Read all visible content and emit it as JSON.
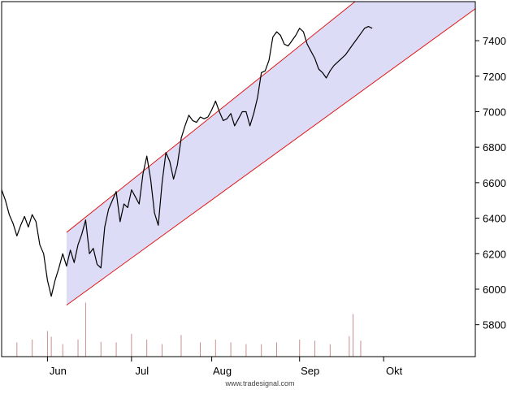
{
  "chart_data": {
    "type": "line",
    "title": "",
    "xlabel": "",
    "ylabel": "",
    "watermark": "www.tradesignal.com",
    "x_unit": "trading day index (0 = Jun 1)",
    "xlim": [
      -12,
      112
    ],
    "ylim": [
      5620,
      7620
    ],
    "y_ticks": [
      5800,
      6000,
      6200,
      6400,
      6600,
      6800,
      7000,
      7200,
      7400
    ],
    "month_ticks": [
      {
        "label": "Jun",
        "x": 0
      },
      {
        "label": "Jul",
        "x": 22
      },
      {
        "label": "Aug",
        "x": 43
      },
      {
        "label": "Sep",
        "x": 66
      },
      {
        "label": "Okt",
        "x": 88
      }
    ],
    "series": [
      {
        "type": "line",
        "color": "#000000",
        "x": [
          -12,
          -11,
          -10,
          -9,
          -8,
          -7,
          -6,
          -5,
          -4,
          -3,
          -2,
          -1,
          0,
          1,
          2,
          3,
          4,
          5,
          6,
          7,
          8,
          9,
          10,
          11,
          12,
          13,
          14,
          15,
          16,
          17,
          18,
          19,
          20,
          21,
          22,
          23,
          24,
          25,
          26,
          27,
          28,
          29,
          30,
          31,
          32,
          33,
          34,
          35,
          36,
          37,
          38,
          39,
          40,
          41,
          42,
          43,
          44,
          45,
          46,
          47,
          48,
          49,
          50,
          51,
          52,
          53,
          54,
          55,
          56,
          57,
          58,
          59,
          60,
          61,
          62,
          63,
          64,
          65,
          66,
          67,
          68,
          69,
          70,
          71,
          72,
          73,
          74,
          75,
          76,
          77,
          78,
          79,
          80,
          81,
          82,
          83,
          84,
          85
        ],
        "y": [
          6560,
          6500,
          6420,
          6370,
          6300,
          6360,
          6410,
          6350,
          6420,
          6380,
          6250,
          6200,
          6050,
          5960,
          6050,
          6120,
          6200,
          6130,
          6220,
          6150,
          6250,
          6310,
          6390,
          6200,
          6230,
          6140,
          6120,
          6350,
          6450,
          6500,
          6550,
          6380,
          6480,
          6460,
          6560,
          6520,
          6480,
          6650,
          6750,
          6620,
          6430,
          6360,
          6600,
          6770,
          6720,
          6620,
          6700,
          6850,
          6920,
          6980,
          6950,
          6940,
          6970,
          6960,
          6970,
          7010,
          7060,
          7000,
          6950,
          6960,
          6990,
          6920,
          6960,
          7000,
          7000,
          6920,
          6990,
          7080,
          7220,
          7230,
          7290,
          7420,
          7450,
          7430,
          7380,
          7370,
          7400,
          7430,
          7470,
          7450,
          7380,
          7340,
          7300,
          7240,
          7220,
          7190,
          7230,
          7260,
          7280,
          7300,
          7320,
          7350,
          7380,
          7410,
          7440,
          7470,
          7480,
          7470
        ]
      }
    ],
    "channel": {
      "fill": "#dcdcf7",
      "line_color": "#e01818",
      "upper": [
        [
          5,
          6320
        ],
        [
          84,
          7680
        ]
      ],
      "lower": [
        [
          5,
          5910
        ],
        [
          112,
          7580
        ]
      ]
    },
    "volume": {
      "color": "#c88f8f",
      "x": [
        -12,
        -8,
        -4,
        0,
        1,
        4,
        8,
        10,
        14,
        18,
        22,
        26,
        30,
        35,
        40,
        44,
        48,
        52,
        56,
        60,
        66,
        70,
        74,
        79,
        80,
        82
      ],
      "values": [
        20,
        25,
        30,
        45,
        35,
        22,
        30,
        95,
        26,
        25,
        40,
        30,
        22,
        38,
        25,
        30,
        25,
        22,
        22,
        25,
        30,
        28,
        22,
        36,
        75,
        28
      ],
      "max": 100
    }
  }
}
